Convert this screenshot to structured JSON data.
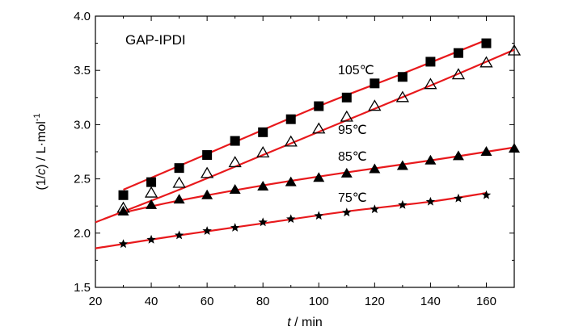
{
  "chart_data": {
    "type": "scatter",
    "title": "GAP-IPDI",
    "xlabel_italic": "t",
    "xlabel_rest": " / min",
    "ylabel_prefix": "(1/",
    "ylabel_italic": "c",
    "ylabel_suffix": ") / L·mol",
    "ylabel_sup": "-1",
    "xlim": [
      20,
      170
    ],
    "ylim": [
      1.5,
      4.0
    ],
    "xticks": [
      20,
      40,
      60,
      80,
      100,
      120,
      140,
      160
    ],
    "yticks": [
      "1.5",
      "2.0",
      "2.5",
      "3.0",
      "3.5",
      "4.0"
    ],
    "fit_color": "#e8191c",
    "series": [
      {
        "name": "105℃",
        "marker": "filled-square",
        "x": [
          30,
          40,
          50,
          60,
          70,
          80,
          90,
          100,
          110,
          120,
          130,
          140,
          150,
          160
        ],
        "y": [
          2.35,
          2.47,
          2.6,
          2.72,
          2.85,
          2.93,
          3.05,
          3.17,
          3.25,
          3.38,
          3.44,
          3.58,
          3.66,
          3.75
        ],
        "fit": [
          [
            30,
            2.4
          ],
          [
            60,
            2.73
          ],
          [
            100,
            3.17
          ],
          [
            130,
            3.47
          ],
          [
            160,
            3.78
          ]
        ]
      },
      {
        "name": "95℃",
        "marker": "open-triangle",
        "x": [
          30,
          40,
          50,
          60,
          70,
          80,
          90,
          100,
          110,
          120,
          130,
          140,
          150,
          160,
          170
        ],
        "y": [
          2.23,
          2.37,
          2.46,
          2.55,
          2.65,
          2.74,
          2.84,
          2.96,
          3.07,
          3.17,
          3.25,
          3.37,
          3.46,
          3.57,
          3.68
        ],
        "fit": [
          [
            20,
            2.1
          ],
          [
            50,
            2.4
          ],
          [
            80,
            2.72
          ],
          [
            110,
            3.04
          ],
          [
            140,
            3.36
          ],
          [
            170,
            3.69
          ]
        ]
      },
      {
        "name": "85℃",
        "marker": "filled-triangle",
        "x": [
          30,
          40,
          50,
          60,
          70,
          80,
          90,
          100,
          110,
          120,
          130,
          140,
          150,
          160,
          170
        ],
        "y": [
          2.2,
          2.26,
          2.31,
          2.35,
          2.4,
          2.43,
          2.47,
          2.51,
          2.55,
          2.59,
          2.62,
          2.67,
          2.71,
          2.75,
          2.78
        ],
        "fit": [
          [
            30,
            2.19
          ],
          [
            50,
            2.3
          ],
          [
            80,
            2.44
          ],
          [
            110,
            2.56
          ],
          [
            140,
            2.67
          ],
          [
            170,
            2.79
          ]
        ]
      },
      {
        "name": "75℃",
        "marker": "star",
        "x": [
          30,
          40,
          50,
          60,
          70,
          80,
          90,
          100,
          110,
          120,
          130,
          140,
          150,
          160
        ],
        "y": [
          1.9,
          1.94,
          1.98,
          2.02,
          2.05,
          2.1,
          2.13,
          2.16,
          2.19,
          2.22,
          2.26,
          2.29,
          2.32,
          2.35
        ],
        "fit": [
          [
            20,
            1.86
          ],
          [
            50,
            1.98
          ],
          [
            80,
            2.09
          ],
          [
            110,
            2.2
          ],
          [
            140,
            2.29
          ],
          [
            160,
            2.37
          ]
        ]
      }
    ]
  }
}
